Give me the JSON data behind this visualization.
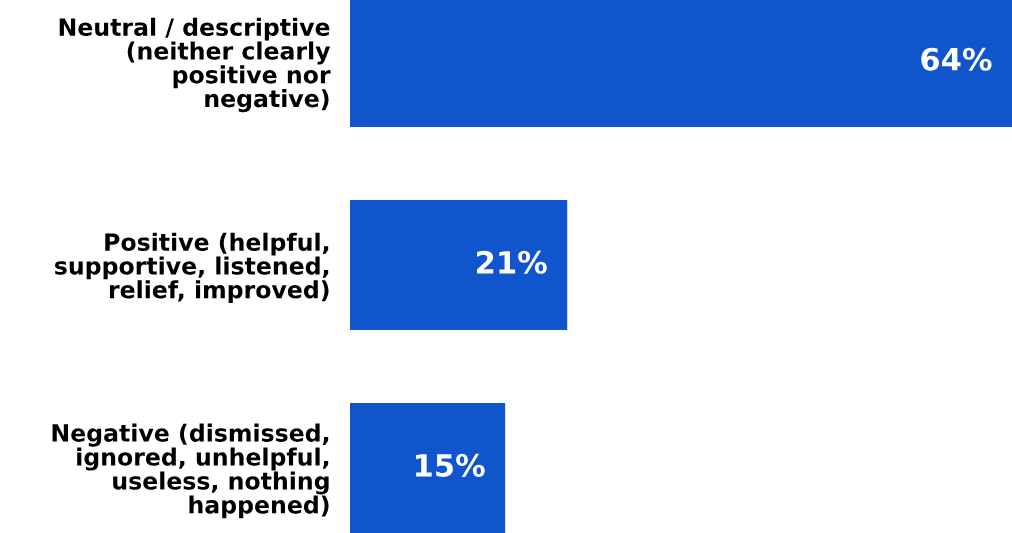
{
  "chart_data": {
    "type": "bar",
    "orientation": "horizontal",
    "categories": [
      "Neutral / descriptive\n(neither clearly\npositive nor\nnegative)",
      "Positive (helpful,\nsupportive, listened,\nrelief, improved)",
      "Negative (dismissed,\nignored, unhelpful,\nuseless, nothing\nhappened)"
    ],
    "values": [
      64,
      21,
      15
    ],
    "value_labels": [
      "64%",
      "21%",
      "15%"
    ],
    "color": "#1155cc"
  }
}
